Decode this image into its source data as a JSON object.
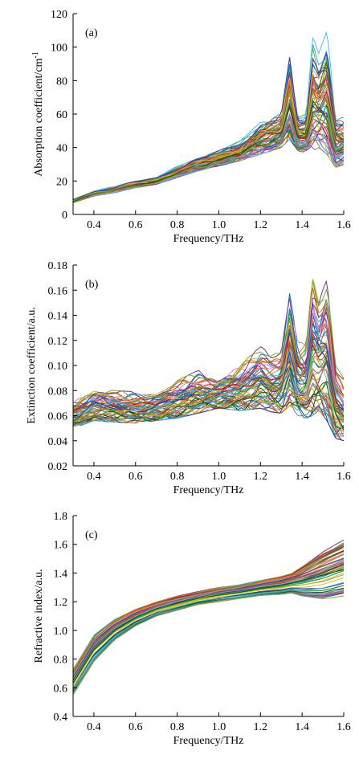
{
  "chart_data": [
    {
      "type": "line",
      "panel_label": "(a)",
      "xlabel": "Frequency/THz",
      "ylabel": "Absorption coefficient/cm",
      "ylabel_superscript": "-1",
      "xlim": [
        0.3,
        1.6
      ],
      "ylim": [
        0,
        120
      ],
      "xticks": [
        0.4,
        0.6,
        0.8,
        1.0,
        1.2,
        1.4,
        1.6
      ],
      "xtick_labels": [
        "0.4",
        "0.6",
        "0.8",
        "1.0",
        "1.2",
        "1.4",
        "1.6"
      ],
      "yticks": [
        0,
        20,
        40,
        60,
        80,
        100,
        120
      ],
      "ytick_labels": [
        "0",
        "20",
        "40",
        "60",
        "80",
        "100",
        "120"
      ],
      "grid": false,
      "series_count": 60,
      "envelope": {
        "x": [
          0.3,
          0.4,
          0.5,
          0.6,
          0.7,
          0.8,
          0.9,
          1.0,
          1.1,
          1.2,
          1.25,
          1.3,
          1.34,
          1.38,
          1.42,
          1.45,
          1.48,
          1.52,
          1.56,
          1.6
        ],
        "low": [
          7,
          11,
          13,
          16,
          18,
          22,
          26,
          29,
          32,
          36,
          38,
          40,
          45,
          38,
          37,
          38,
          40,
          36,
          28,
          30
        ],
        "high": [
          9,
          14,
          17,
          20,
          22,
          29,
          34,
          38,
          44,
          55,
          58,
          60,
          94,
          58,
          60,
          107,
          96,
          110,
          60,
          58
        ]
      }
    },
    {
      "type": "line",
      "panel_label": "(b)",
      "xlabel": "Frequency/THz",
      "ylabel": "Extinction coefficient/a.u.",
      "xlim": [
        0.3,
        1.6
      ],
      "ylim": [
        0.02,
        0.18
      ],
      "xticks": [
        0.4,
        0.6,
        0.8,
        1.0,
        1.2,
        1.4,
        1.6
      ],
      "xtick_labels": [
        "0.4",
        "0.6",
        "0.8",
        "1.0",
        "1.2",
        "1.4",
        "1.6"
      ],
      "yticks": [
        0.02,
        0.04,
        0.06,
        0.08,
        0.1,
        0.12,
        0.14,
        0.16,
        0.18
      ],
      "ytick_labels": [
        "0.02",
        "0.04",
        "0.06",
        "0.08",
        "0.10",
        "0.12",
        "0.14",
        "0.16",
        "0.18"
      ],
      "grid": false,
      "series_count": 60,
      "envelope": {
        "x": [
          0.3,
          0.4,
          0.5,
          0.6,
          0.7,
          0.8,
          0.9,
          1.0,
          1.1,
          1.2,
          1.25,
          1.3,
          1.34,
          1.38,
          1.42,
          1.45,
          1.48,
          1.52,
          1.56,
          1.6
        ],
        "low": [
          0.05,
          0.056,
          0.055,
          0.054,
          0.056,
          0.058,
          0.062,
          0.066,
          0.064,
          0.066,
          0.063,
          0.062,
          0.068,
          0.06,
          0.058,
          0.06,
          0.064,
          0.056,
          0.042,
          0.04
        ],
        "high": [
          0.072,
          0.081,
          0.08,
          0.079,
          0.08,
          0.088,
          0.096,
          0.092,
          0.1,
          0.115,
          0.11,
          0.115,
          0.165,
          0.12,
          0.12,
          0.177,
          0.155,
          0.173,
          0.1,
          0.09
        ]
      }
    },
    {
      "type": "line",
      "panel_label": "(c)",
      "xlabel": "Frequency/THz",
      "ylabel": "Refractive index/a.u.",
      "xlim": [
        0.3,
        1.6
      ],
      "ylim": [
        0.4,
        1.8
      ],
      "xticks": [
        0.4,
        0.6,
        0.8,
        1.0,
        1.2,
        1.4,
        1.6
      ],
      "xtick_labels": [
        "0.4",
        "0.6",
        "0.8",
        "1.0",
        "1.2",
        "1.4",
        "1.6"
      ],
      "yticks": [
        0.4,
        0.6,
        0.8,
        1.0,
        1.2,
        1.4,
        1.6,
        1.8
      ],
      "ytick_labels": [
        "0.4",
        "0.6",
        "0.8",
        "1.0",
        "1.2",
        "1.4",
        "1.6",
        "1.8"
      ],
      "grid": false,
      "series_count": 60,
      "envelope": {
        "x": [
          0.3,
          0.4,
          0.5,
          0.6,
          0.7,
          0.8,
          0.9,
          1.0,
          1.1,
          1.2,
          1.3,
          1.35,
          1.4,
          1.5,
          1.6
        ],
        "low": [
          0.55,
          0.78,
          0.93,
          1.03,
          1.1,
          1.14,
          1.18,
          1.2,
          1.22,
          1.24,
          1.25,
          1.26,
          1.24,
          1.22,
          1.24
        ],
        "high": [
          0.73,
          0.97,
          1.08,
          1.15,
          1.2,
          1.24,
          1.27,
          1.3,
          1.32,
          1.35,
          1.38,
          1.4,
          1.45,
          1.55,
          1.63
        ]
      }
    }
  ],
  "colors": [
    "#1f77b4",
    "#d62728",
    "#2ca02c",
    "#ff7f0e",
    "#9467bd",
    "#8c564b",
    "#17becf",
    "#bcbd22",
    "#e377c2",
    "#7f7f7f",
    "#7e2f8e",
    "#a2142f",
    "#0072bd",
    "#d95319",
    "#edb120",
    "#77ac30",
    "#4dbeee",
    "#3b3b98",
    "#006400",
    "#b8860b"
  ]
}
